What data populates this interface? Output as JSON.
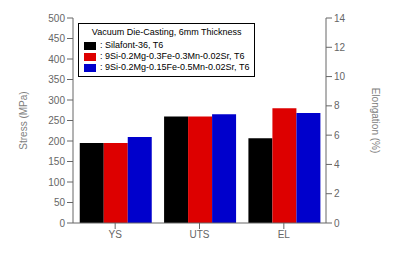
{
  "chart_data": {
    "type": "bar",
    "title": "Vacuum Die-Casting, 6mm Thickness",
    "categories": [
      "YS",
      "UTS",
      "EL"
    ],
    "series": [
      {
        "name": ": Silafont-36, T6",
        "color": "#000000",
        "values": [
          195,
          260,
          207
        ]
      },
      {
        "name": ": 9Si-0.2Mg-0.3Fe-0.3Mn-0.02Sr, T6",
        "color": "#dd0000",
        "values": [
          195,
          260,
          280
        ]
      },
      {
        "name": ": 9Si-0.2Mg-0.15Fe-0.5Mn-0.02Sr, T6",
        "color": "#0000cc",
        "values": [
          210,
          265,
          268
        ]
      }
    ],
    "ylabel": "Stress (MPa)",
    "y2label": "Elongation (%)",
    "ylim": [
      0,
      500
    ],
    "yticks": [
      0,
      50,
      100,
      150,
      200,
      250,
      300,
      350,
      400,
      450,
      500
    ],
    "y2lim": [
      0,
      14
    ],
    "y2ticks": [
      0,
      2,
      4,
      6,
      8,
      10,
      12,
      14
    ],
    "legend": "upper left",
    "grid": false
  }
}
